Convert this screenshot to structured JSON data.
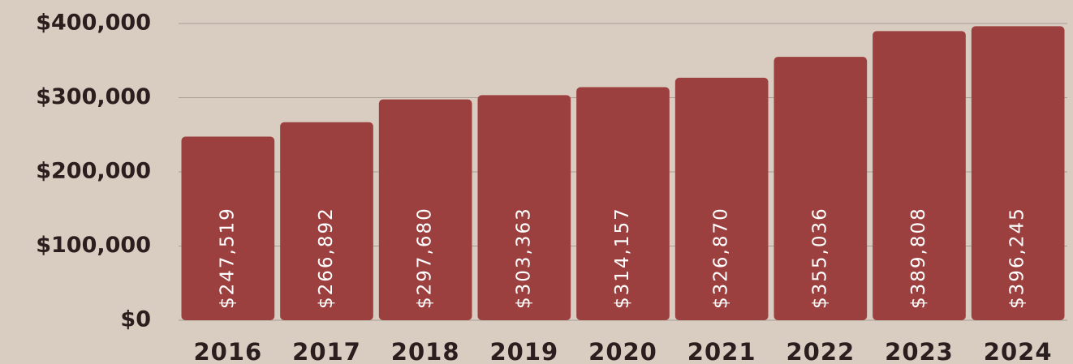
{
  "chart_data": {
    "type": "bar",
    "categories": [
      "2016",
      "2017",
      "2018",
      "2019",
      "2020",
      "2021",
      "2022",
      "2023",
      "2024"
    ],
    "values": [
      247519,
      266892,
      297680,
      303363,
      314157,
      326870,
      355036,
      389808,
      396245
    ],
    "value_labels": [
      "$247,519",
      "$266,892",
      "$297,680",
      "$303,363",
      "$314,157",
      "$326,870",
      "$355,036",
      "$389,808",
      "$396,245"
    ],
    "color": "#9b403e",
    "ylim": [
      0,
      400000
    ],
    "yticks": [
      {
        "value": 0,
        "label": "$0"
      },
      {
        "value": 100000,
        "label": "$100,000"
      },
      {
        "value": 200000,
        "label": "$200,000"
      },
      {
        "value": 300000,
        "label": "$300,000"
      },
      {
        "value": 400000,
        "label": "$400,000"
      }
    ],
    "grid": true
  }
}
